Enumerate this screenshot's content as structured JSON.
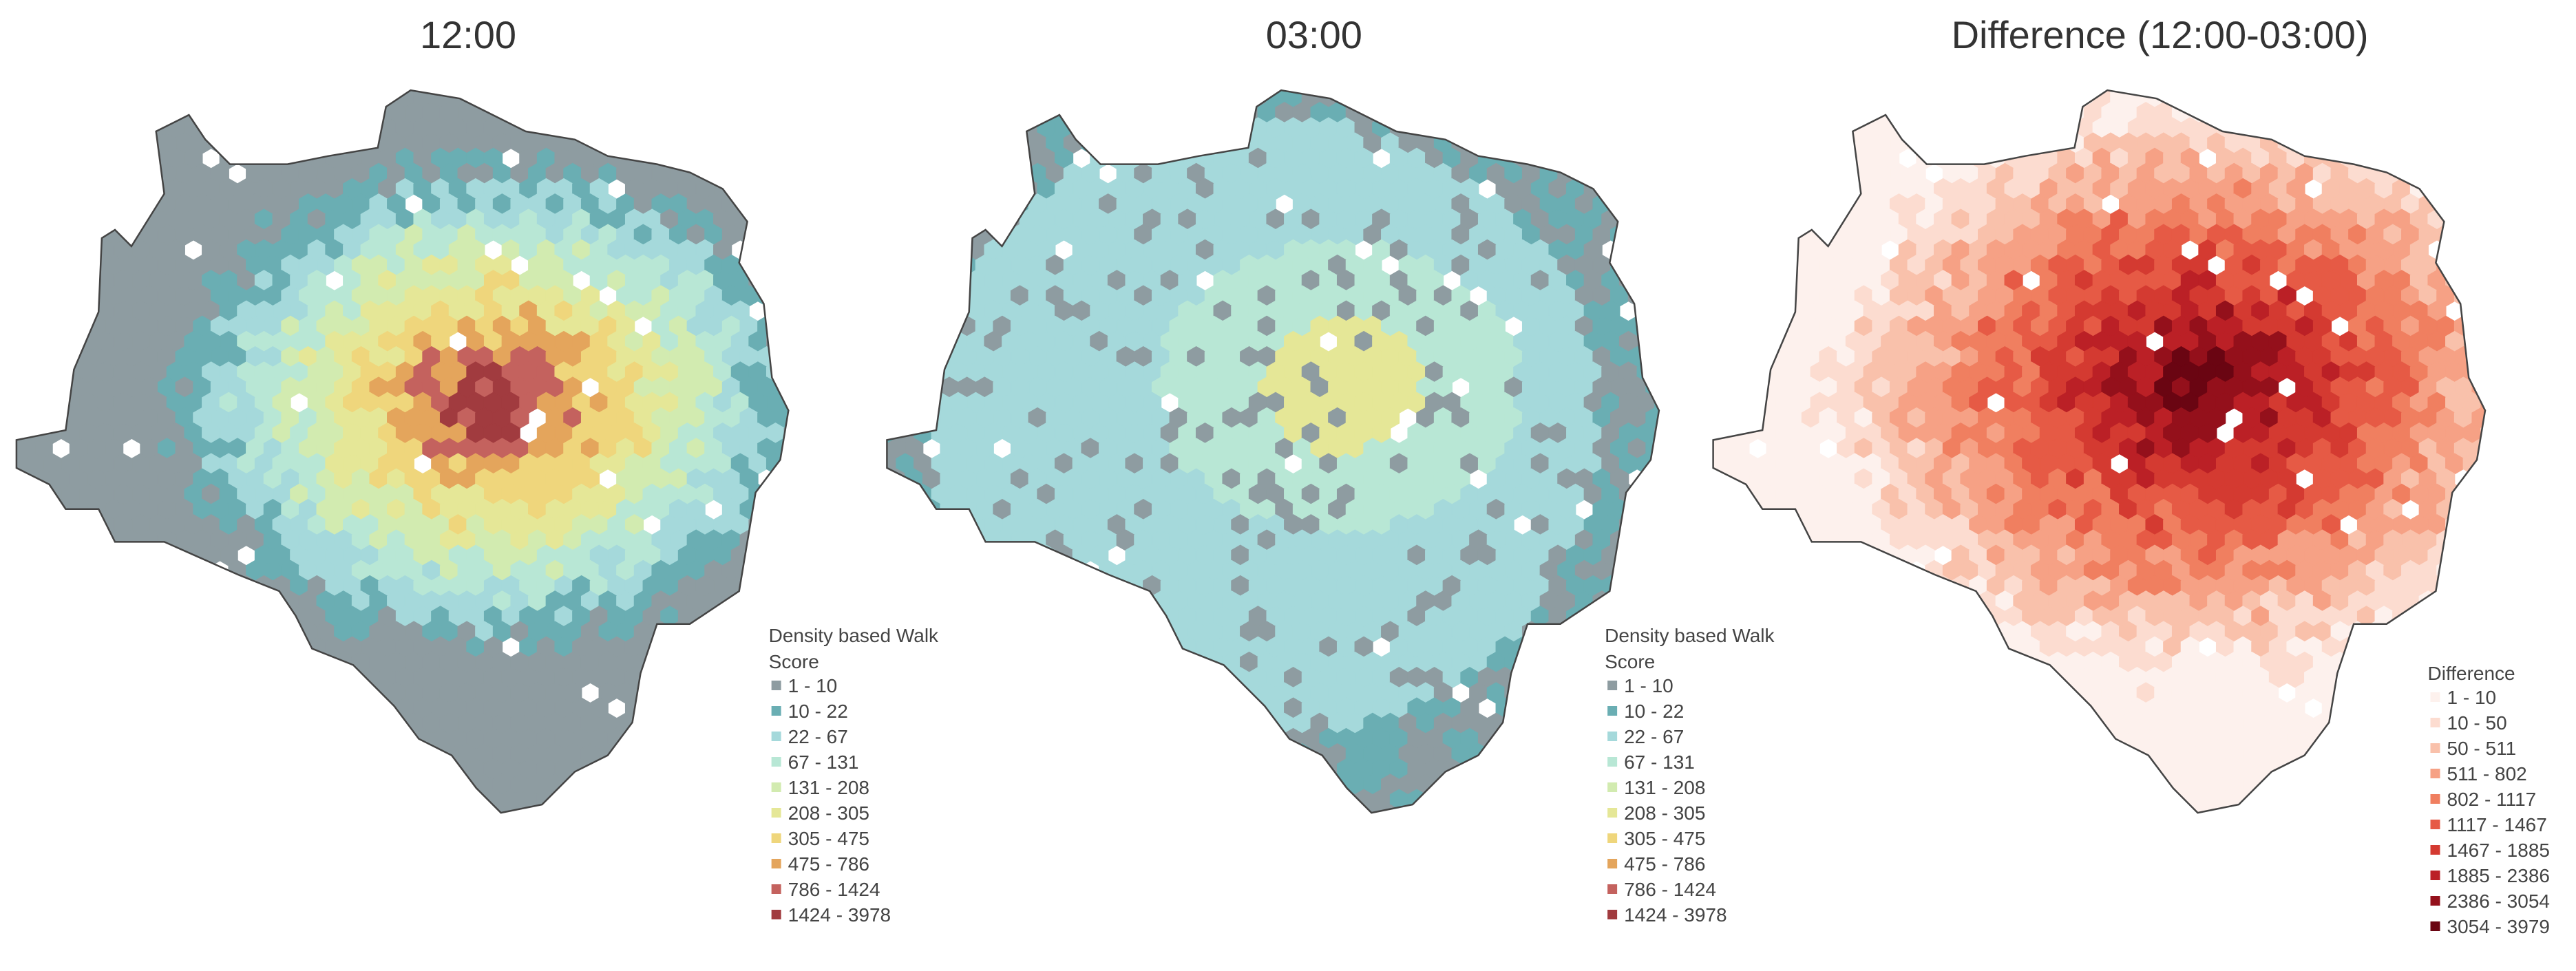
{
  "panels": [
    {
      "title": "12:00",
      "legend": {
        "title": [
          "Density based Walk",
          "Score"
        ],
        "items": [
          {
            "label": "1 - 10",
            "color": "#8e9ca1"
          },
          {
            "label": "10 - 22",
            "color": "#6aaeb3"
          },
          {
            "label": "22 - 67",
            "color": "#a5d9db"
          },
          {
            "label": "67 - 131",
            "color": "#b8e7d5"
          },
          {
            "label": "131 - 208",
            "color": "#d2ebb0"
          },
          {
            "label": "208 - 305",
            "color": "#e5e797"
          },
          {
            "label": "305 - 475",
            "color": "#efd67c"
          },
          {
            "label": "475 - 786",
            "color": "#e4a55c"
          },
          {
            "label": "786 - 1424",
            "color": "#c4625e"
          },
          {
            "label": "1424 - 3978",
            "color": "#a13b3f"
          }
        ]
      }
    },
    {
      "title": "03:00",
      "legend": {
        "title": [
          "Density based Walk",
          "Score"
        ],
        "items": [
          {
            "label": "1 - 10",
            "color": "#8e9ca1"
          },
          {
            "label": "10 - 22",
            "color": "#6aaeb3"
          },
          {
            "label": "22 - 67",
            "color": "#a5d9db"
          },
          {
            "label": "67 - 131",
            "color": "#b8e7d5"
          },
          {
            "label": "131 - 208",
            "color": "#d2ebb0"
          },
          {
            "label": "208 - 305",
            "color": "#e5e797"
          },
          {
            "label": "305 - 475",
            "color": "#efd67c"
          },
          {
            "label": "475 - 786",
            "color": "#e4a55c"
          },
          {
            "label": "786 - 1424",
            "color": "#c4625e"
          },
          {
            "label": "1424 - 3978",
            "color": "#a13b3f"
          }
        ]
      }
    },
    {
      "title": "Difference (12:00-03:00)",
      "legend": {
        "title": [
          "Difference"
        ],
        "items": [
          {
            "label": "1 - 10",
            "color": "#fdf1ed"
          },
          {
            "label": "10 - 50",
            "color": "#fcdcd0"
          },
          {
            "label": "50 - 511",
            "color": "#f9c1ab"
          },
          {
            "label": "511 - 802",
            "color": "#f6a185"
          },
          {
            "label": "802 - 1117",
            "color": "#f07f60"
          },
          {
            "label": "1117 - 1467",
            "color": "#e65a45"
          },
          {
            "label": "1467 - 1885",
            "color": "#d43a31"
          },
          {
            "label": "1885 - 2386",
            "color": "#bb2026"
          },
          {
            "label": "2386 - 3054",
            "color": "#94101b"
          },
          {
            "label": "3054 - 3979",
            "color": "#6a0512"
          }
        ]
      }
    }
  ]
}
